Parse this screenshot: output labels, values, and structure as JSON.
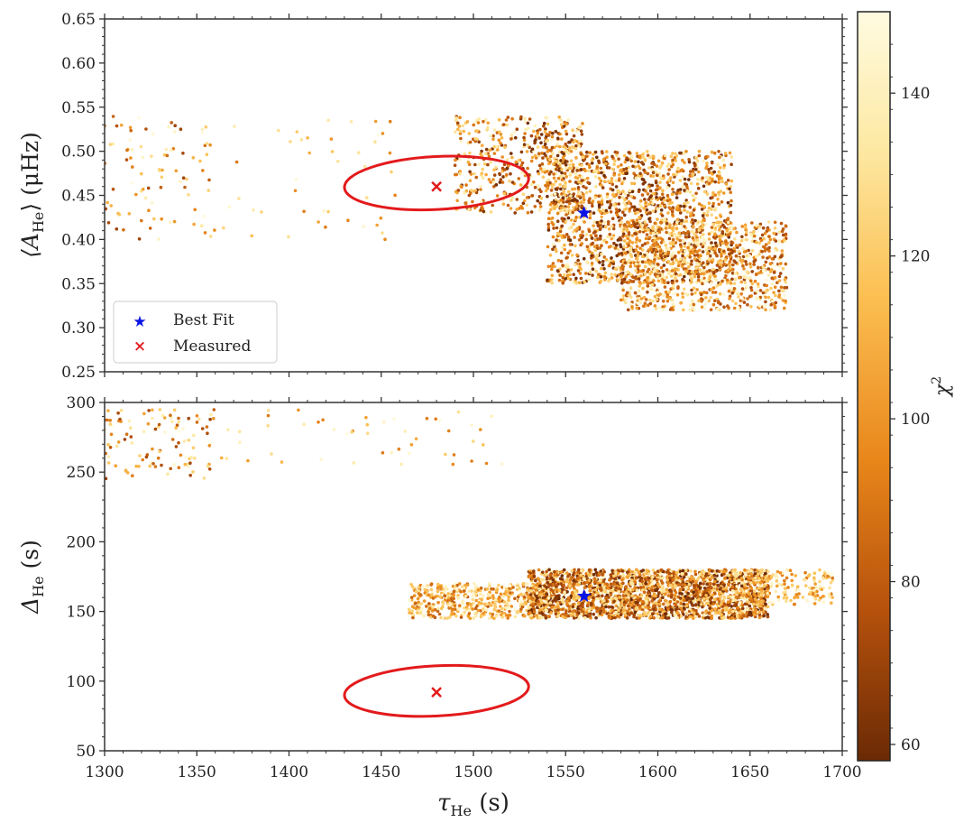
{
  "chart_data": [
    {
      "type": "scatter",
      "panel": "top",
      "ylabel_main": "⟨A",
      "ylabel_sub": "He",
      "ylabel_tail": "⟩ (μHz)",
      "xlim": [
        1300,
        1700
      ],
      "ylim": [
        0.25,
        0.65
      ],
      "yticks": [
        "0.25",
        "0.30",
        "0.35",
        "0.40",
        "0.45",
        "0.50",
        "0.55",
        "0.60",
        "0.65"
      ],
      "ytick_values": [
        0.25,
        0.3,
        0.35,
        0.4,
        0.45,
        0.5,
        0.55,
        0.6,
        0.65
      ],
      "best_fit": {
        "x": 1560,
        "y": 0.43
      },
      "measured": {
        "x": 1480,
        "y": 0.46
      },
      "ellipse": {
        "cx": 1480,
        "cy": 0.464,
        "rx": 50,
        "ry": 0.03,
        "tilt": -0.05
      },
      "clusters": [
        {
          "x0": 1300,
          "x1": 1360,
          "y0": 0.4,
          "y1": 0.54,
          "n": 90,
          "chi_min": 70,
          "chi_max": 150
        },
        {
          "x0": 1360,
          "x1": 1460,
          "y0": 0.4,
          "y1": 0.54,
          "n": 45,
          "chi_min": 90,
          "chi_max": 150
        },
        {
          "x0": 1490,
          "x1": 1560,
          "y0": 0.43,
          "y1": 0.54,
          "n": 500,
          "chi_min": 60,
          "chi_max": 145
        },
        {
          "x0": 1540,
          "x1": 1640,
          "y0": 0.35,
          "y1": 0.5,
          "n": 1500,
          "chi_min": 58,
          "chi_max": 140
        },
        {
          "x0": 1580,
          "x1": 1670,
          "y0": 0.32,
          "y1": 0.42,
          "n": 900,
          "chi_min": 70,
          "chi_max": 150
        }
      ]
    },
    {
      "type": "scatter",
      "panel": "bottom",
      "ylabel_main": "Δ",
      "ylabel_sub": "He",
      "ylabel_tail": " (s)",
      "xlim": [
        1300,
        1700
      ],
      "ylim": [
        50,
        300
      ],
      "yticks": [
        "50",
        "100",
        "150",
        "200",
        "250",
        "300"
      ],
      "ytick_values": [
        50,
        100,
        150,
        200,
        250,
        300
      ],
      "xticks": [
        "1300",
        "1350",
        "1400",
        "1450",
        "1500",
        "1550",
        "1600",
        "1650",
        "1700"
      ],
      "xtick_values": [
        1300,
        1350,
        1400,
        1450,
        1500,
        1550,
        1600,
        1650,
        1700
      ],
      "xlabel_main": "τ",
      "xlabel_sub": "He",
      "xlabel_tail": " (s)",
      "best_fit": {
        "x": 1560,
        "y": 161
      },
      "measured": {
        "x": 1480,
        "y": 92
      },
      "ellipse": {
        "cx": 1480,
        "cy": 93,
        "rx": 50,
        "ry": 18,
        "tilt": -0.05
      },
      "clusters": [
        {
          "x0": 1300,
          "x1": 1360,
          "y0": 245,
          "y1": 295,
          "n": 110,
          "chi_min": 70,
          "chi_max": 150
        },
        {
          "x0": 1360,
          "x1": 1520,
          "y0": 255,
          "y1": 295,
          "n": 50,
          "chi_min": 90,
          "chi_max": 150
        },
        {
          "x0": 1465,
          "x1": 1540,
          "y0": 145,
          "y1": 170,
          "n": 500,
          "chi_min": 80,
          "chi_max": 150
        },
        {
          "x0": 1530,
          "x1": 1660,
          "y0": 145,
          "y1": 180,
          "n": 2200,
          "chi_min": 58,
          "chi_max": 140
        },
        {
          "x0": 1640,
          "x1": 1695,
          "y0": 155,
          "y1": 180,
          "n": 200,
          "chi_min": 90,
          "chi_max": 150
        }
      ]
    }
  ],
  "legend": {
    "best_fit_label": "Best Fit",
    "measured_label": "Measured",
    "best_fit_color": "#0a14e6",
    "measured_color": "#e31a1c"
  },
  "colorbar": {
    "label": "χ",
    "label_sup": "2",
    "range": [
      58,
      150
    ],
    "ticks": [
      "60",
      "80",
      "100",
      "120",
      "140"
    ],
    "tick_values": [
      60,
      80,
      100,
      120,
      140
    ],
    "cmap_stops": [
      "#6b2a05",
      "#b5510c",
      "#e8861a",
      "#fcbf52",
      "#fde9a4",
      "#fffbe1"
    ]
  }
}
